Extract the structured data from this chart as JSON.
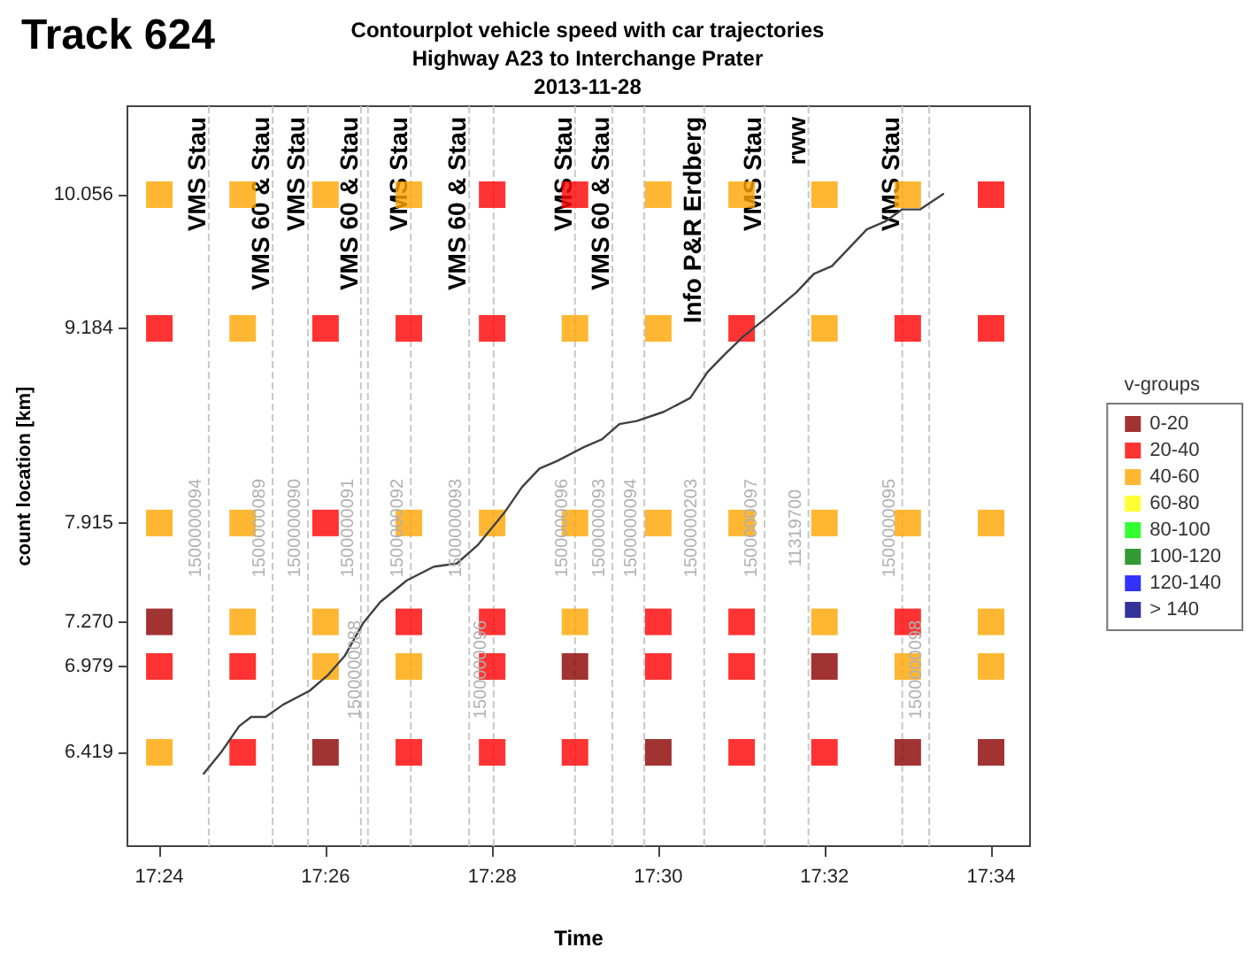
{
  "chart_data": {
    "type": "scatter",
    "title": "Contourplot vehicle speed with car trajectories",
    "subtitle": "Highway A23 to Interchange Prater\n2013-11-28",
    "xlabel": "Time",
    "ylabel": "count location [km]",
    "legend_title": "v-groups",
    "legend": "right",
    "marker": "square",
    "grid": false,
    "xlim": [
      17.3936,
      17.5745
    ],
    "ylim": [
      5.807,
      10.633
    ],
    "xticks": [
      {
        "value": 17.4,
        "label": "17:24"
      },
      {
        "value": 17.4333,
        "label": "17:26"
      },
      {
        "value": 17.4667,
        "label": "17:28"
      },
      {
        "value": 17.5,
        "label": "17:30"
      },
      {
        "value": 17.5333,
        "label": "17:32"
      },
      {
        "value": 17.5667,
        "label": "17:34"
      }
    ],
    "yticks": [
      {
        "value": 6.419,
        "label": "6.419"
      },
      {
        "value": 6.979,
        "label": "6.979"
      },
      {
        "value": 7.27,
        "label": "7.270"
      },
      {
        "value": 7.915,
        "label": "7.915"
      },
      {
        "value": 9.184,
        "label": "9.184"
      },
      {
        "value": 10.056,
        "label": "10.056"
      }
    ],
    "series": [
      {
        "name": "0-20",
        "color": "#8b0000",
        "x": [
          17.4,
          17.4833,
          17.5333,
          17.4333,
          17.5,
          17.55,
          17.5667
        ],
        "values": [
          7.27,
          6.979,
          6.979,
          6.419,
          6.419,
          6.419,
          6.419
        ]
      },
      {
        "name": "20-40",
        "color": "#ff0000",
        "x": [
          17.4667,
          17.4833,
          17.5667,
          17.4,
          17.4333,
          17.45,
          17.4667,
          17.5167,
          17.55,
          17.5667,
          17.4333,
          17.45,
          17.4667,
          17.5,
          17.5167,
          17.55,
          17.4,
          17.4167,
          17.4667,
          17.5,
          17.5167,
          17.4167,
          17.45,
          17.4667,
          17.4833,
          17.5167,
          17.5333
        ],
        "values": [
          10.056,
          10.056,
          10.056,
          9.184,
          9.184,
          9.184,
          9.184,
          9.184,
          9.184,
          9.184,
          7.915,
          7.27,
          7.27,
          7.27,
          7.27,
          7.27,
          6.979,
          6.979,
          6.979,
          6.979,
          6.979,
          6.419,
          6.419,
          6.419,
          6.419,
          6.419,
          6.419
        ]
      },
      {
        "name": "40-60",
        "color": "#ffa500",
        "x": [
          17.4,
          17.4167,
          17.4333,
          17.45,
          17.5,
          17.5167,
          17.5333,
          17.55,
          17.4167,
          17.4833,
          17.5,
          17.5333,
          17.4,
          17.4167,
          17.45,
          17.4667,
          17.4833,
          17.5,
          17.5167,
          17.5333,
          17.55,
          17.5667,
          17.4167,
          17.4333,
          17.4833,
          17.5333,
          17.5667,
          17.4333,
          17.45,
          17.55,
          17.5667,
          17.4
        ],
        "values": [
          10.056,
          10.056,
          10.056,
          10.056,
          10.056,
          10.056,
          10.056,
          10.056,
          9.184,
          9.184,
          9.184,
          9.184,
          7.915,
          7.915,
          7.915,
          7.915,
          7.915,
          7.915,
          7.915,
          7.915,
          7.915,
          7.915,
          7.27,
          7.27,
          7.27,
          7.27,
          7.27,
          6.979,
          6.979,
          6.979,
          6.979,
          6.419
        ]
      },
      {
        "name": "60-80",
        "color": "#ffff00"
      },
      {
        "name": "80-100",
        "color": "#00ff00"
      },
      {
        "name": "100-120",
        "color": "#008000"
      },
      {
        "name": "120-140",
        "color": "#0000ff"
      },
      {
        "name": "> 140",
        "color": "#000080"
      },
      {
        "type": "line",
        "color": "#404040",
        "marker": "none",
        "x": [
          17.4089,
          17.4124,
          17.416,
          17.4184,
          17.4213,
          17.4248,
          17.4301,
          17.4337,
          17.4372,
          17.4408,
          17.4443,
          17.4496,
          17.455,
          17.4596,
          17.4638,
          17.4691,
          17.4727,
          17.4762,
          17.4798,
          17.4851,
          17.4887,
          17.4922,
          17.4957,
          17.5011,
          17.5064,
          17.5099,
          17.5135,
          17.517,
          17.5223,
          17.5277,
          17.5312,
          17.5348,
          17.5383,
          17.5418,
          17.5454,
          17.5489,
          17.5525,
          17.5571
        ],
        "values": [
          6.28,
          6.42,
          6.59,
          6.65,
          6.65,
          6.73,
          6.82,
          6.92,
          7.05,
          7.26,
          7.4,
          7.54,
          7.63,
          7.65,
          7.77,
          7.98,
          8.15,
          8.27,
          8.32,
          8.41,
          8.46,
          8.56,
          8.58,
          8.64,
          8.73,
          8.9,
          9.02,
          9.13,
          9.27,
          9.42,
          9.54,
          9.59,
          9.71,
          9.83,
          9.88,
          9.96,
          9.96,
          10.06
        ]
      }
    ],
    "ref_lines": [
      {
        "axis": "x",
        "value": 17.4099,
        "label": "VMS Stau",
        "color": "#c8c8c8",
        "line_style": "dashed"
      },
      {
        "axis": "x",
        "value": 17.4227,
        "label": "VMS 60 & Stau",
        "color": "#c8c8c8",
        "line_style": "dashed"
      },
      {
        "axis": "x",
        "value": 17.4298,
        "label": "VMS Stau",
        "color": "#c8c8c8",
        "line_style": "dashed"
      },
      {
        "axis": "x",
        "value": 17.4404,
        "label": "VMS 60 & Stau",
        "color": "#c8c8c8",
        "line_style": "dashed"
      },
      {
        "axis": "x",
        "value": 17.4418,
        "color": "#c8c8c8",
        "line_style": "dashed"
      },
      {
        "axis": "x",
        "value": 17.4504,
        "label": "VMS Stau",
        "color": "#c8c8c8",
        "line_style": "dashed"
      },
      {
        "axis": "x",
        "value": 17.4621,
        "label": "VMS 60 & Stau",
        "color": "#c8c8c8",
        "line_style": "dashed"
      },
      {
        "axis": "x",
        "value": 17.467,
        "color": "#c8c8c8",
        "line_style": "dashed"
      },
      {
        "axis": "x",
        "value": 17.4833,
        "label": "VMS Stau",
        "color": "#c8c8c8",
        "line_style": "dashed"
      },
      {
        "axis": "x",
        "value": 17.4908,
        "label": "VMS 60 & Stau",
        "color": "#c8c8c8",
        "line_style": "dashed"
      },
      {
        "axis": "x",
        "value": 17.4972,
        "color": "#c8c8c8",
        "line_style": "dashed"
      },
      {
        "axis": "x",
        "value": 17.5092,
        "label": "Info P&R Erdberg",
        "color": "#c8c8c8",
        "line_style": "dashed"
      },
      {
        "axis": "x",
        "value": 17.5213,
        "label": "VMS Stau",
        "color": "#c8c8c8",
        "line_style": "dashed"
      },
      {
        "axis": "x",
        "value": 17.5301,
        "label": "rww",
        "color": "#c8c8c8",
        "line_style": "dashed"
      },
      {
        "axis": "x",
        "value": 17.5489,
        "label": "VMS Stau",
        "color": "#c8c8c8",
        "line_style": "dashed"
      },
      {
        "axis": "x",
        "value": 17.5543,
        "color": "#c8c8c8",
        "line_style": "dashed"
      }
    ],
    "annotations": [
      "Track 624",
      "1500000094",
      "1500000089",
      "1500000090",
      "1500000091",
      "1500000088",
      "1500000092",
      "1500000093",
      "1500000096",
      "1500000096",
      "1500000093",
      "1500000094",
      "1500000203",
      "1500000097",
      "11319700",
      "1500000095",
      "1500000098"
    ]
  }
}
